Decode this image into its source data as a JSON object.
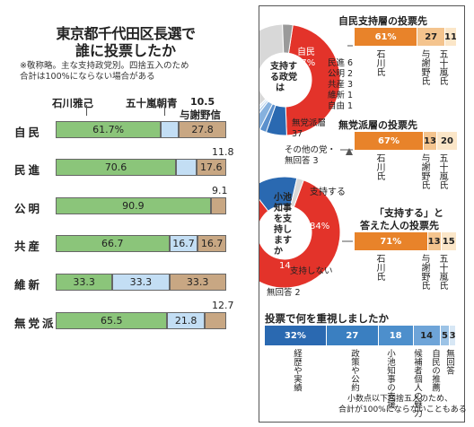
{
  "title": {
    "line1": "東京都千代田区長選で",
    "line2": "誰に投票したか"
  },
  "notes": [
    "※敬称略。主な支持政党別。四捨五入のため",
    "合計は100%にならない場合がある"
  ],
  "candidates": [
    "石川雅己",
    "五十嵐朝青",
    "与謝野信"
  ],
  "chart_data": [
    {
      "type": "bar",
      "orientation": "horizontal-stacked",
      "categories": [
        "自民",
        "民進",
        "公明",
        "共産",
        "維新",
        "無党派"
      ],
      "series": [
        {
          "name": "石川雅己",
          "values": [
            61.7,
            70.6,
            90.9,
            66.7,
            33.3,
            65.5
          ]
        },
        {
          "name": "五十嵐朝青",
          "values": [
            10.5,
            11.8,
            0,
            16.7,
            33.3,
            21.8
          ]
        },
        {
          "name": "与謝野信",
          "values": [
            27.8,
            17.6,
            9.1,
            16.7,
            33.3,
            12.7
          ]
        }
      ],
      "colors": [
        "#8bc57a",
        "#c3def4",
        "#c8a783"
      ]
    },
    {
      "type": "pie",
      "title": "自民支持層の投票先",
      "slices": [
        {
          "label": "自民",
          "value": 47
        },
        {
          "label": "民進",
          "value": 6
        },
        {
          "label": "公明",
          "value": 2
        },
        {
          "label": "共産",
          "value": 3
        },
        {
          "label": "維新",
          "value": 1
        },
        {
          "label": "自由",
          "value": 1
        },
        {
          "label": "無党派層",
          "value": 37
        },
        {
          "label": "その他の党・無回答",
          "value": 3
        }
      ]
    },
    {
      "type": "bar",
      "title": "自民支持層の投票先",
      "categories": [
        "石川氏",
        "与謝野氏",
        "五十嵐氏"
      ],
      "values": [
        61,
        27,
        11
      ]
    },
    {
      "type": "bar",
      "title": "無党派層の投票先",
      "categories": [
        "石川氏",
        "与謝野氏",
        "五十嵐氏"
      ],
      "values": [
        67,
        13,
        20
      ]
    },
    {
      "type": "pie",
      "title": "小池知事を支持しますか",
      "slices": [
        {
          "label": "支持する",
          "value": 84
        },
        {
          "label": "支持しない",
          "value": 14
        },
        {
          "label": "無回答",
          "value": 2
        }
      ]
    },
    {
      "type": "bar",
      "title": "「支持する」と答えた人の投票先",
      "categories": [
        "石川氏",
        "与謝野氏",
        "五十嵐氏"
      ],
      "values": [
        71,
        13,
        15
      ]
    },
    {
      "type": "bar",
      "title": "投票で何を重視しましたか",
      "categories": [
        "経歴や実績",
        "政策や公約",
        "小池知事の支援",
        "候補者個人の魅力",
        "自民の推薦",
        "無回答"
      ],
      "values": [
        32,
        27,
        18,
        14,
        5,
        3
      ]
    }
  ],
  "left_rows": [
    {
      "label": "自民",
      "vals": [
        "61.7%",
        "",
        "27.8"
      ],
      "above": ""
    },
    {
      "label": "民進",
      "vals": [
        "70.6",
        "",
        "17.6"
      ],
      "above": "11.8"
    },
    {
      "label": "公明",
      "vals": [
        "90.9",
        "",
        ""
      ],
      "above": "9.1"
    },
    {
      "label": "共産",
      "vals": [
        "66.7",
        "16.7",
        "16.7"
      ],
      "above": ""
    },
    {
      "label": "維新",
      "vals": [
        "33.3",
        "33.3",
        "33.3"
      ],
      "above": ""
    },
    {
      "label": "無党派",
      "vals": [
        "65.5",
        "21.8",
        ""
      ],
      "above": "12.7"
    }
  ],
  "top_legend_value": "10.5",
  "right": {
    "h1": "自民支持層の投票先",
    "h2": "無党派層の投票先",
    "h3a": "「支持する」と",
    "h3b": "答えた人の投票先",
    "h4": "投票で何を重視しましたか",
    "bar1": [
      "61%",
      "27",
      "11"
    ],
    "bar2": [
      "67%",
      "13",
      "20"
    ],
    "bar3": [
      "71%",
      "13",
      "15"
    ],
    "cand_ishikawa": "石川氏",
    "cand_yosano": "与謝野氏",
    "cand_igarashi": "五十嵐氏",
    "pie1_center": "支持する政党は",
    "pie1_main": "自民",
    "pie1_main_val": "47%",
    "pie1_list": [
      "民進 6",
      "公明 2",
      "共産 3",
      "維新 1",
      "自由 1"
    ],
    "pie1_noparty": "無党派層",
    "pie1_noparty_val": "37",
    "pie1_other": "その他の党・",
    "pie1_other2": "無回答 3",
    "pie2_center": "小池知事を支持しますか",
    "pie2_yes": "支持する",
    "pie2_yes_val": "84%",
    "pie2_no": "支持しない",
    "pie2_no_val": "14",
    "pie2_na": "無回答 2",
    "bottom_vals": [
      "32%",
      "27",
      "18",
      "14",
      "5",
      "3"
    ],
    "bottom_labels": [
      "経歴や実績",
      "政策や公約",
      "小池知事の支援",
      "候補者個人の魅力",
      "自民の推薦",
      "無回答"
    ],
    "footnote1": "小数点以下四捨五入のため、",
    "footnote2": "合計が100%にならないこともある"
  }
}
